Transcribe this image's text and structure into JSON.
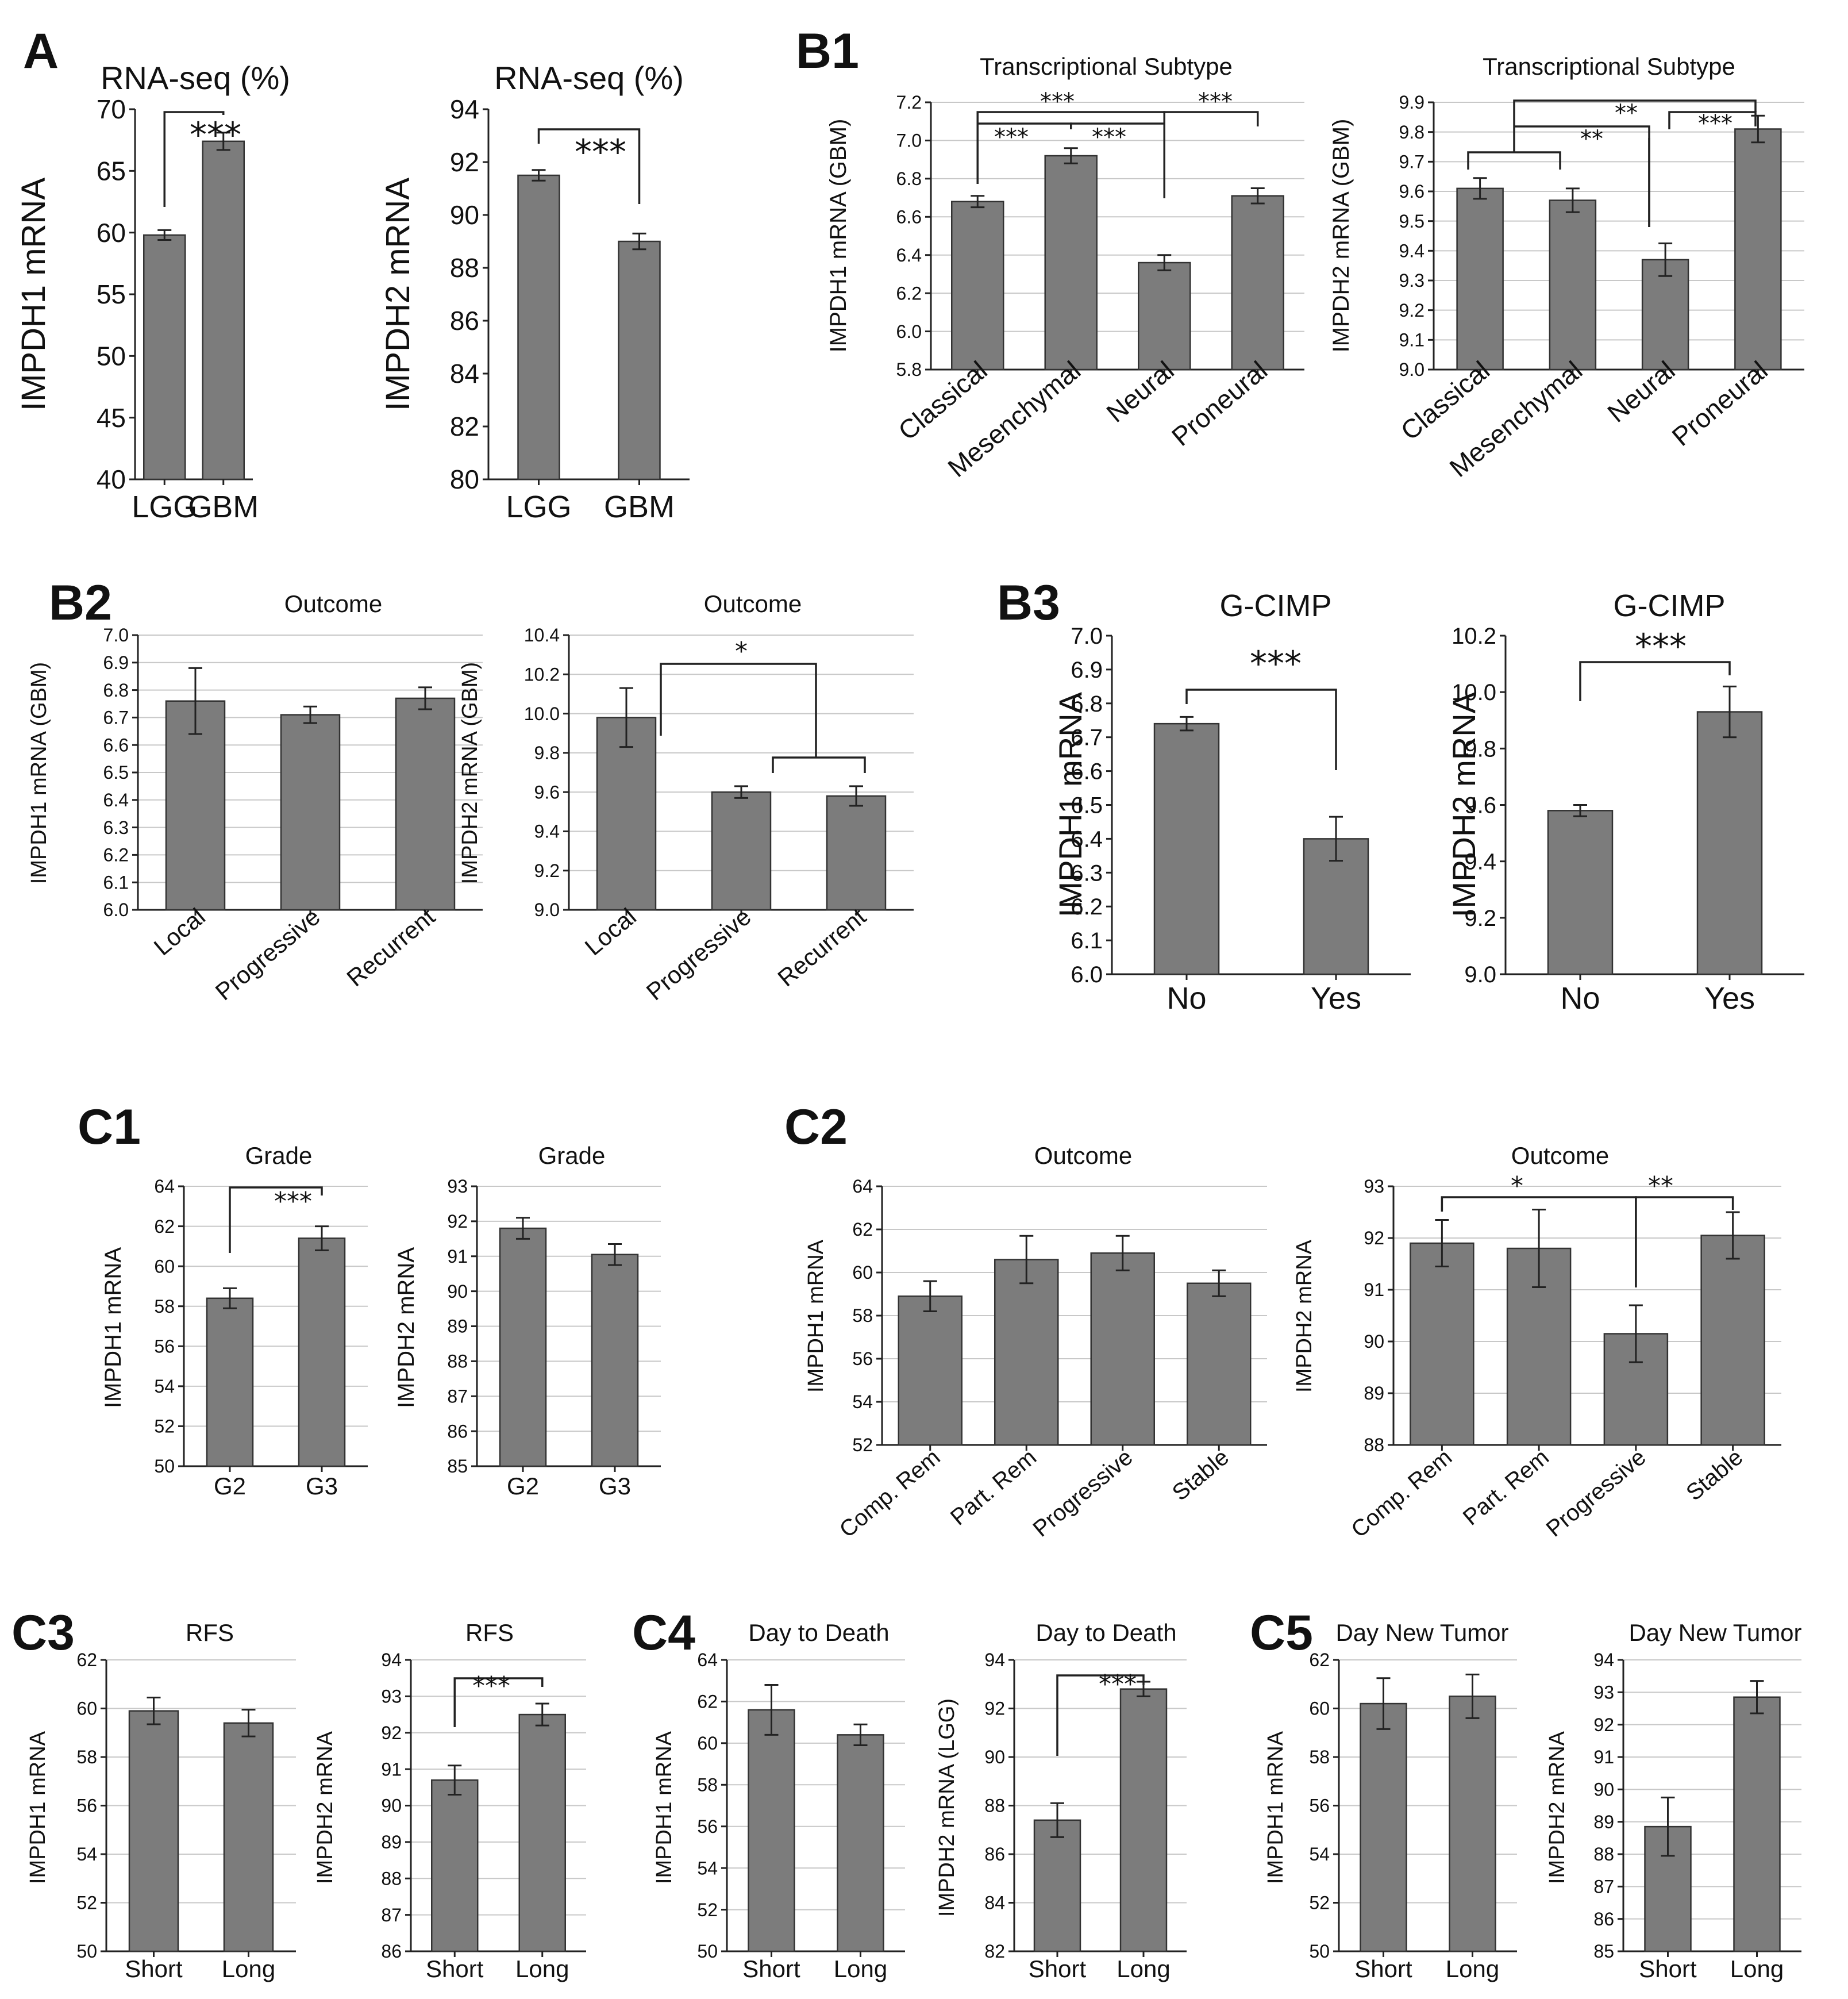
{
  "panel_labels": {
    "A": "A",
    "B1": "B1",
    "B2": "B2",
    "B3": "B3",
    "C1": "C1",
    "C2": "C2",
    "C3": "C3",
    "C4": "C4",
    "C5": "C5"
  },
  "colors": {
    "bar": "#7c7c7c",
    "bar_edge": "#333333",
    "grid": "#c8c8c8",
    "axis": "#222222"
  },
  "chart_data": [
    {
      "id": "A1",
      "type": "bar",
      "panel": "A",
      "title": "RNA-seq (%)",
      "ylabel": "IMPDH1 mRNA",
      "ylim": [
        40,
        70
      ],
      "ticks": [
        "40",
        "45",
        "50",
        "55",
        "60",
        "65",
        "70"
      ],
      "grid": false,
      "categories": [
        "LGG",
        "GBM"
      ],
      "values": [
        59.8,
        67.4
      ],
      "errors": [
        0.4,
        0.7
      ],
      "annotations": [
        {
          "from": 0,
          "to": 1,
          "label": "***"
        }
      ]
    },
    {
      "id": "A2",
      "type": "bar",
      "panel": "A",
      "title": "RNA-seq (%)",
      "ylabel": "IMPDH2 mRNA",
      "ylim": [
        80,
        94
      ],
      "ticks": [
        "80",
        "82",
        "84",
        "86",
        "88",
        "90",
        "92",
        "94"
      ],
      "grid": false,
      "categories": [
        "LGG",
        "GBM"
      ],
      "values": [
        91.5,
        89.0
      ],
      "errors": [
        0.2,
        0.3
      ],
      "annotations": [
        {
          "from": 0,
          "to": 1,
          "label": "***"
        }
      ]
    },
    {
      "id": "B1a",
      "type": "bar",
      "panel": "B1",
      "title": "Transcriptional Subtype",
      "ylabel": "IMPDH1 mRNA (GBM)",
      "ylim": [
        5.8,
        7.2
      ],
      "ticks": [
        "5.8",
        "6.0",
        "6.2",
        "6.4",
        "6.6",
        "6.8",
        "7.0",
        "7.2"
      ],
      "grid": true,
      "categories": [
        "Classical",
        "Mesenchymal",
        "Neural",
        "Proneural"
      ],
      "values": [
        6.68,
        6.92,
        6.36,
        6.71
      ],
      "errors": [
        0.03,
        0.04,
        0.04,
        0.04
      ],
      "annotations": [
        {
          "from": 0,
          "to": 1,
          "label": "***"
        },
        {
          "from": 1,
          "to": 2,
          "label": "***"
        },
        {
          "from": 0,
          "to": 2,
          "label": "***"
        },
        {
          "from": 2,
          "to": 3,
          "label": "***"
        }
      ]
    },
    {
      "id": "B1b",
      "type": "bar",
      "panel": "B1",
      "title": "Transcriptional Subtype",
      "ylabel": "IMPDH2 mRNA (GBM)",
      "ylim": [
        9.0,
        9.9
      ],
      "ticks": [
        "9.0",
        "9.1",
        "9.2",
        "9.3",
        "9.4",
        "9.5",
        "9.6",
        "9.7",
        "9.8",
        "9.9"
      ],
      "grid": true,
      "categories": [
        "Classical",
        "Mesenchymal",
        "Neural",
        "Proneural"
      ],
      "values": [
        9.61,
        9.57,
        9.37,
        9.81
      ],
      "errors": [
        0.035,
        0.04,
        0.055,
        0.045
      ],
      "annotations": [
        {
          "label": "**"
        },
        {
          "label": "**"
        },
        {
          "label": "***"
        }
      ]
    },
    {
      "id": "B2a",
      "type": "bar",
      "panel": "B2",
      "title": "Outcome",
      "ylabel": "IMPDH1 mRNA (GBM)",
      "ylim": [
        6.0,
        7.0
      ],
      "ticks": [
        "6.0",
        "6.1",
        "6.2",
        "6.3",
        "6.4",
        "6.5",
        "6.6",
        "6.7",
        "6.8",
        "6.9",
        "7.0"
      ],
      "grid": true,
      "categories": [
        "Local",
        "Progressive",
        "Recurrent"
      ],
      "values": [
        6.76,
        6.71,
        6.77
      ],
      "errors": [
        0.12,
        0.03,
        0.04
      ],
      "annotations": []
    },
    {
      "id": "B2b",
      "type": "bar",
      "panel": "B2",
      "title": "Outcome",
      "ylabel": "IMPDH2 mRNA (GBM)",
      "ylim": [
        9.0,
        10.4
      ],
      "ticks": [
        "9.0",
        "9.2",
        "9.4",
        "9.6",
        "9.8",
        "10.0",
        "10.2",
        "10.4"
      ],
      "grid": true,
      "categories": [
        "Local",
        "Progressive",
        "Recurrent"
      ],
      "values": [
        9.98,
        9.6,
        9.58
      ],
      "errors": [
        0.15,
        0.03,
        0.05
      ],
      "annotations": [
        {
          "label": "*"
        }
      ]
    },
    {
      "id": "B3a",
      "type": "bar",
      "panel": "B3",
      "title": "G-CIMP",
      "ylabel": "IMPDH1  mRNA",
      "ylim": [
        6.0,
        7.0
      ],
      "ticks": [
        "6.0",
        "6.1",
        "6.2",
        "6.3",
        "6.4",
        "6.5",
        "6.6",
        "6.7",
        "6.8",
        "6.9",
        "7.0"
      ],
      "grid": false,
      "categories": [
        "No",
        "Yes"
      ],
      "values": [
        6.74,
        6.4
      ],
      "errors": [
        0.02,
        0.065
      ],
      "annotations": [
        {
          "from": 0,
          "to": 1,
          "label": "***"
        }
      ]
    },
    {
      "id": "B3b",
      "type": "bar",
      "panel": "B3",
      "title": "G-CIMP",
      "ylabel": "IMPDH2  mRNA",
      "ylim": [
        9.0,
        10.2
      ],
      "ticks": [
        "9.0",
        "9.2",
        "9.4",
        "9.6",
        "9.8",
        "10.0",
        "10.2"
      ],
      "grid": false,
      "categories": [
        "No",
        "Yes"
      ],
      "values": [
        9.58,
        9.93
      ],
      "errors": [
        0.02,
        0.09
      ],
      "annotations": [
        {
          "from": 0,
          "to": 1,
          "label": "***"
        }
      ]
    },
    {
      "id": "C1a",
      "type": "bar",
      "panel": "C1",
      "title": "Grade",
      "ylabel": "IMPDH1 mRNA",
      "ylim": [
        50,
        64
      ],
      "ticks": [
        "50",
        "52",
        "54",
        "56",
        "58",
        "60",
        "62",
        "64"
      ],
      "grid": true,
      "categories": [
        "G2",
        "G3"
      ],
      "values": [
        58.4,
        61.4
      ],
      "errors": [
        0.5,
        0.6
      ],
      "annotations": [
        {
          "from": 0,
          "to": 1,
          "label": "***"
        }
      ]
    },
    {
      "id": "C1b",
      "type": "bar",
      "panel": "C1",
      "title": "Grade",
      "ylabel": "IMPDH2 mRNA",
      "ylim": [
        85,
        93
      ],
      "ticks": [
        "85",
        "86",
        "87",
        "88",
        "89",
        "90",
        "91",
        "92",
        "93"
      ],
      "grid": true,
      "categories": [
        "G2",
        "G3"
      ],
      "values": [
        91.8,
        91.05
      ],
      "errors": [
        0.3,
        0.3
      ],
      "annotations": []
    },
    {
      "id": "C2a",
      "type": "bar",
      "panel": "C2",
      "title": "Outcome",
      "ylabel": "IMPDH1 mRNA",
      "ylim": [
        52,
        64
      ],
      "ticks": [
        "52",
        "54",
        "56",
        "58",
        "60",
        "62",
        "64"
      ],
      "grid": true,
      "categories": [
        "Comp. Rem",
        "Part. Rem",
        "Progressive",
        "Stable"
      ],
      "values": [
        58.9,
        60.6,
        60.9,
        59.5
      ],
      "errors": [
        0.7,
        1.1,
        0.8,
        0.6
      ],
      "annotations": []
    },
    {
      "id": "C2b",
      "type": "bar",
      "panel": "C2",
      "title": "Outcome",
      "ylabel": "IMPDH2 mRNA",
      "ylim": [
        88,
        93
      ],
      "ticks": [
        "88",
        "89",
        "90",
        "91",
        "92",
        "93"
      ],
      "grid": true,
      "categories": [
        "Comp. Rem",
        "Part. Rem",
        "Progressive",
        "Stable"
      ],
      "values": [
        91.9,
        91.8,
        90.15,
        92.05
      ],
      "errors": [
        0.45,
        0.75,
        0.55,
        0.45
      ],
      "annotations": [
        {
          "from": 0,
          "to": 2,
          "label": "*"
        },
        {
          "from": 2,
          "to": 3,
          "label": "**"
        }
      ]
    },
    {
      "id": "C3a",
      "type": "bar",
      "panel": "C3",
      "title": "RFS",
      "ylabel": "IMPDH1 mRNA",
      "ylim": [
        50,
        62
      ],
      "ticks": [
        "50",
        "52",
        "54",
        "56",
        "58",
        "60",
        "62"
      ],
      "grid": true,
      "categories": [
        "Short",
        "Long"
      ],
      "values": [
        59.9,
        59.4
      ],
      "errors": [
        0.55,
        0.55
      ],
      "annotations": []
    },
    {
      "id": "C3b",
      "type": "bar",
      "panel": "C3",
      "title": "RFS",
      "ylabel": "IMPDH2 mRNA",
      "ylim": [
        86,
        94
      ],
      "ticks": [
        "86",
        "87",
        "88",
        "89",
        "90",
        "91",
        "92",
        "93",
        "94"
      ],
      "grid": true,
      "categories": [
        "Short",
        "Long"
      ],
      "values": [
        90.7,
        92.5
      ],
      "errors": [
        0.4,
        0.3
      ],
      "annotations": [
        {
          "from": 0,
          "to": 1,
          "label": "***"
        }
      ]
    },
    {
      "id": "C4a",
      "type": "bar",
      "panel": "C4",
      "title": "Day to Death",
      "ylabel": "IMPDH1 mRNA",
      "ylim": [
        50,
        64
      ],
      "ticks": [
        "50",
        "52",
        "54",
        "56",
        "58",
        "60",
        "62",
        "64"
      ],
      "grid": true,
      "categories": [
        "Short",
        "Long"
      ],
      "values": [
        61.6,
        60.4
      ],
      "errors": [
        1.2,
        0.5
      ],
      "annotations": []
    },
    {
      "id": "C4b",
      "type": "bar",
      "panel": "C4",
      "title": "Day to Death",
      "ylabel": "IMPDH2 mRNA (LGG)",
      "ylim": [
        82,
        94
      ],
      "ticks": [
        "82",
        "84",
        "86",
        "88",
        "90",
        "92",
        "94"
      ],
      "grid": true,
      "categories": [
        "Short",
        "Long"
      ],
      "values": [
        87.4,
        92.8
      ],
      "errors": [
        0.7,
        0.3
      ],
      "annotations": [
        {
          "from": 0,
          "to": 1,
          "label": "***"
        }
      ]
    },
    {
      "id": "C5a",
      "type": "bar",
      "panel": "C5",
      "title": "Day New Tumor",
      "ylabel": "IMPDH1 mRNA",
      "ylim": [
        50,
        62
      ],
      "ticks": [
        "50",
        "52",
        "54",
        "56",
        "58",
        "60",
        "62"
      ],
      "grid": true,
      "categories": [
        "Short",
        "Long"
      ],
      "values": [
        60.2,
        60.5
      ],
      "errors": [
        1.05,
        0.9
      ],
      "annotations": []
    },
    {
      "id": "C5b",
      "type": "bar",
      "panel": "C5",
      "title": "Day New Tumor",
      "ylabel": "IMPDH2 mRNA",
      "ylim": [
        85,
        94
      ],
      "ticks": [
        "85",
        "86",
        "87",
        "88",
        "89",
        "90",
        "91",
        "92",
        "93",
        "94"
      ],
      "grid": true,
      "categories": [
        "Short",
        "Long"
      ],
      "values": [
        88.85,
        92.85
      ],
      "errors": [
        0.9,
        0.5
      ],
      "annotations": []
    }
  ]
}
